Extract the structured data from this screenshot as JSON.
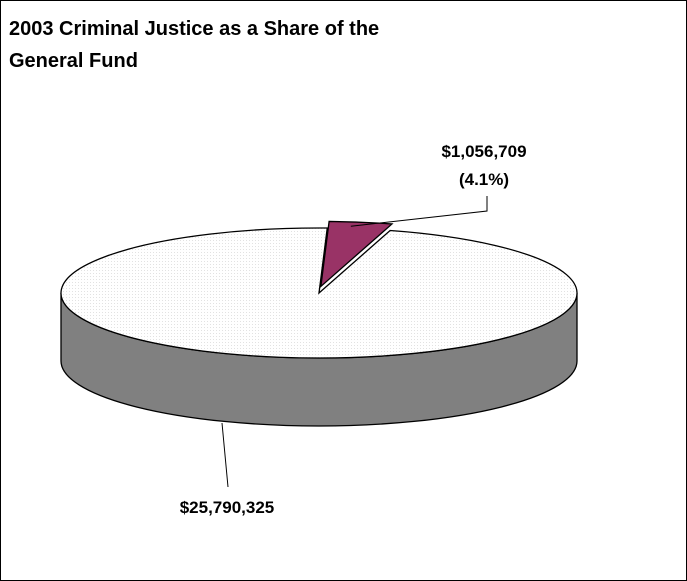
{
  "chart_data": {
    "type": "pie",
    "title_lines": [
      "2003 Criminal Justice as a Share of the",
      "General Fund"
    ],
    "slices": [
      {
        "value": 25790325,
        "label": "$25,790,325",
        "percent_label": "",
        "color": "#ffffff",
        "side_color": "#808080"
      },
      {
        "value": 1056709,
        "label": "$1,056,709",
        "percent_label": "(4.1%)",
        "color": "#993366",
        "side_color": "#662244"
      }
    ]
  }
}
